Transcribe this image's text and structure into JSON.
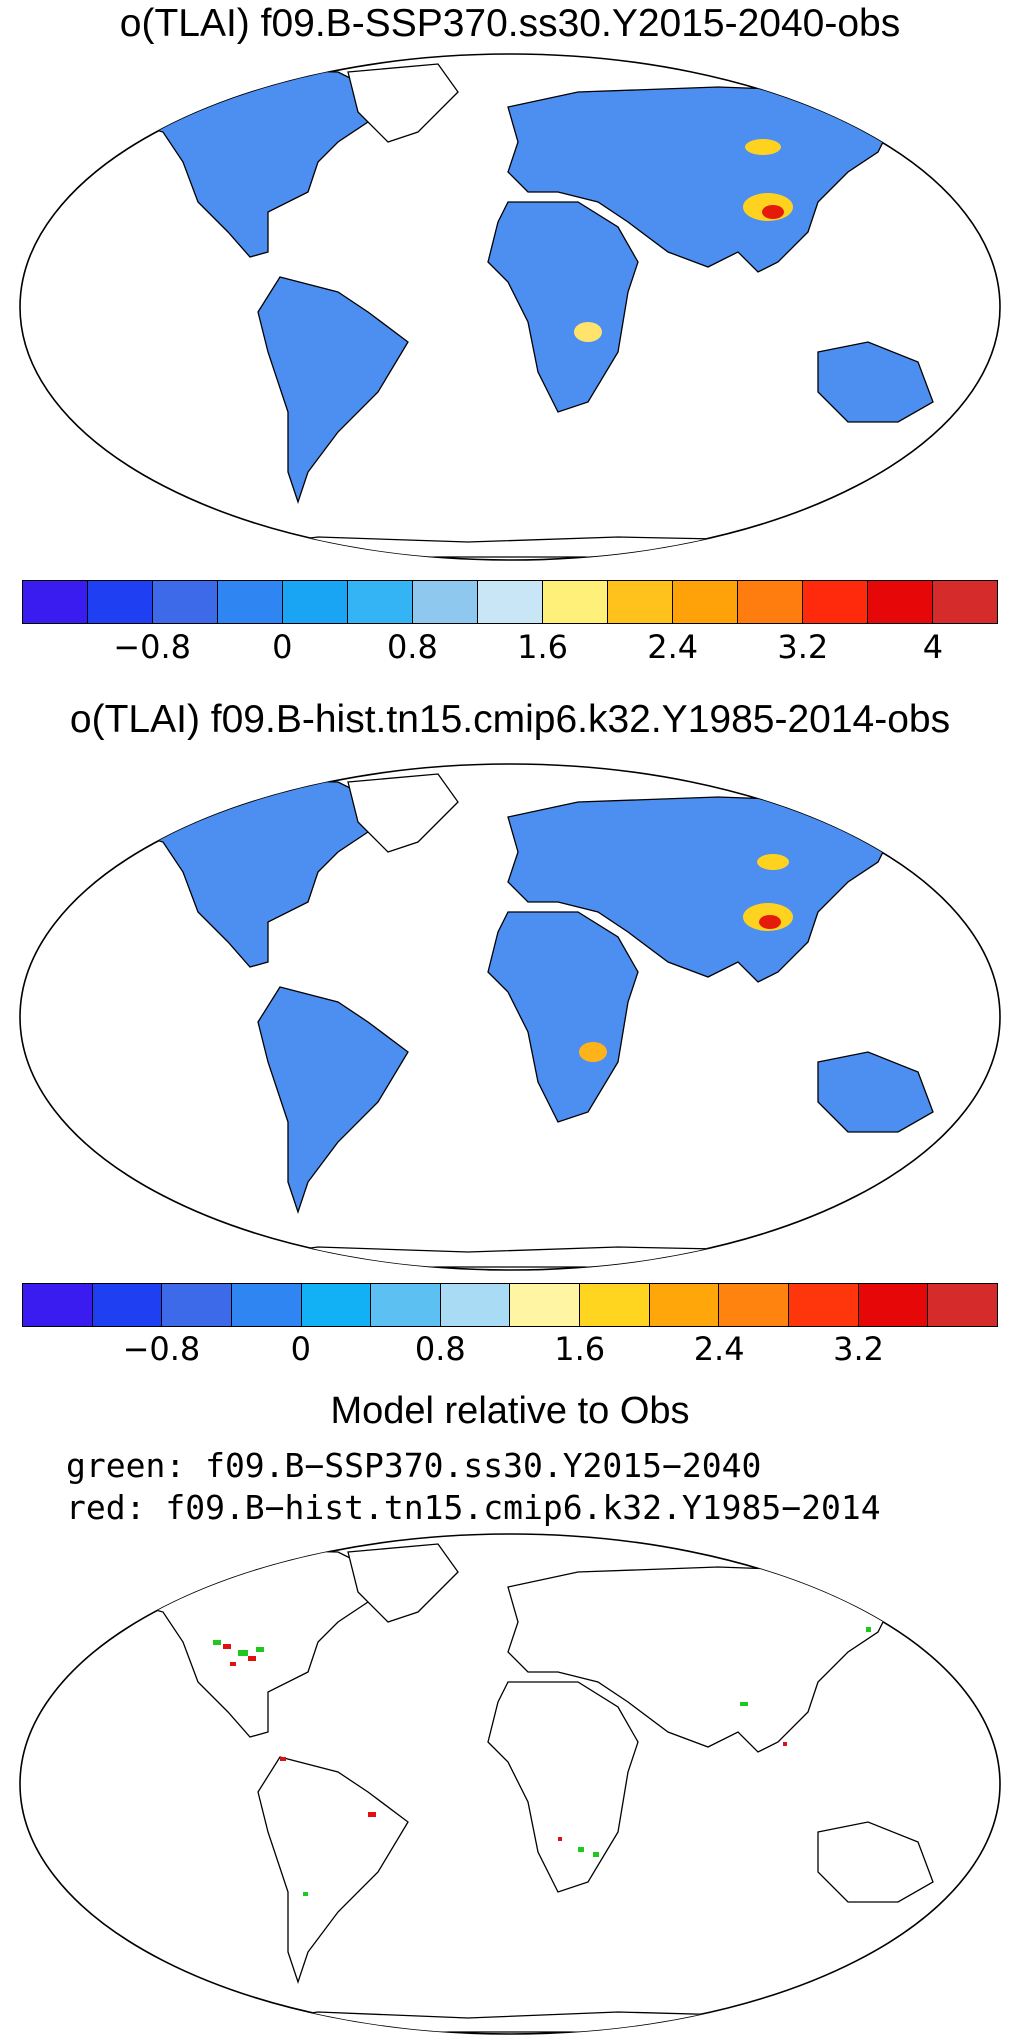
{
  "panel1": {
    "title": "o(TLAI) f09.B-SSP370.ss30.Y2015-2040-obs",
    "colorbar": {
      "colors": [
        "#3b1cf0",
        "#1f3ff2",
        "#3d6ae8",
        "#2f86f3",
        "#19a4f4",
        "#34b4f4",
        "#8ec8ef",
        "#c9e6f6",
        "#fff07a",
        "#ffc21c",
        "#ffa20a",
        "#ff7d0f",
        "#ff2a0c",
        "#e60808",
        "#d52b2b"
      ],
      "tick_labels": [
        "−0.8",
        "0",
        "0.8",
        "1.6",
        "2.4",
        "3.2",
        "4"
      ]
    }
  },
  "panel2": {
    "title": "o(TLAI) f09.B-hist.tn15.cmip6.k32.Y1985-2014-obs",
    "colorbar": {
      "colors": [
        "#3b1cf0",
        "#1f3ff2",
        "#3d6ae8",
        "#2f86f3",
        "#12b0f4",
        "#5cc0f2",
        "#a9dcf4",
        "#fff5a3",
        "#ffd51f",
        "#ffa60a",
        "#ff840f",
        "#ff350c",
        "#e60808",
        "#d52b2b"
      ],
      "tick_labels": [
        "−0.8",
        "0",
        "0.8",
        "1.6",
        "2.4",
        "3.2"
      ]
    }
  },
  "panel3": {
    "title": "Model relative to Obs",
    "legend_green": "green: f09.B−SSP370.ss30.Y2015−2040",
    "legend_red": "red: f09.B−hist.tn15.cmip6.k32.Y1985−2014"
  }
}
